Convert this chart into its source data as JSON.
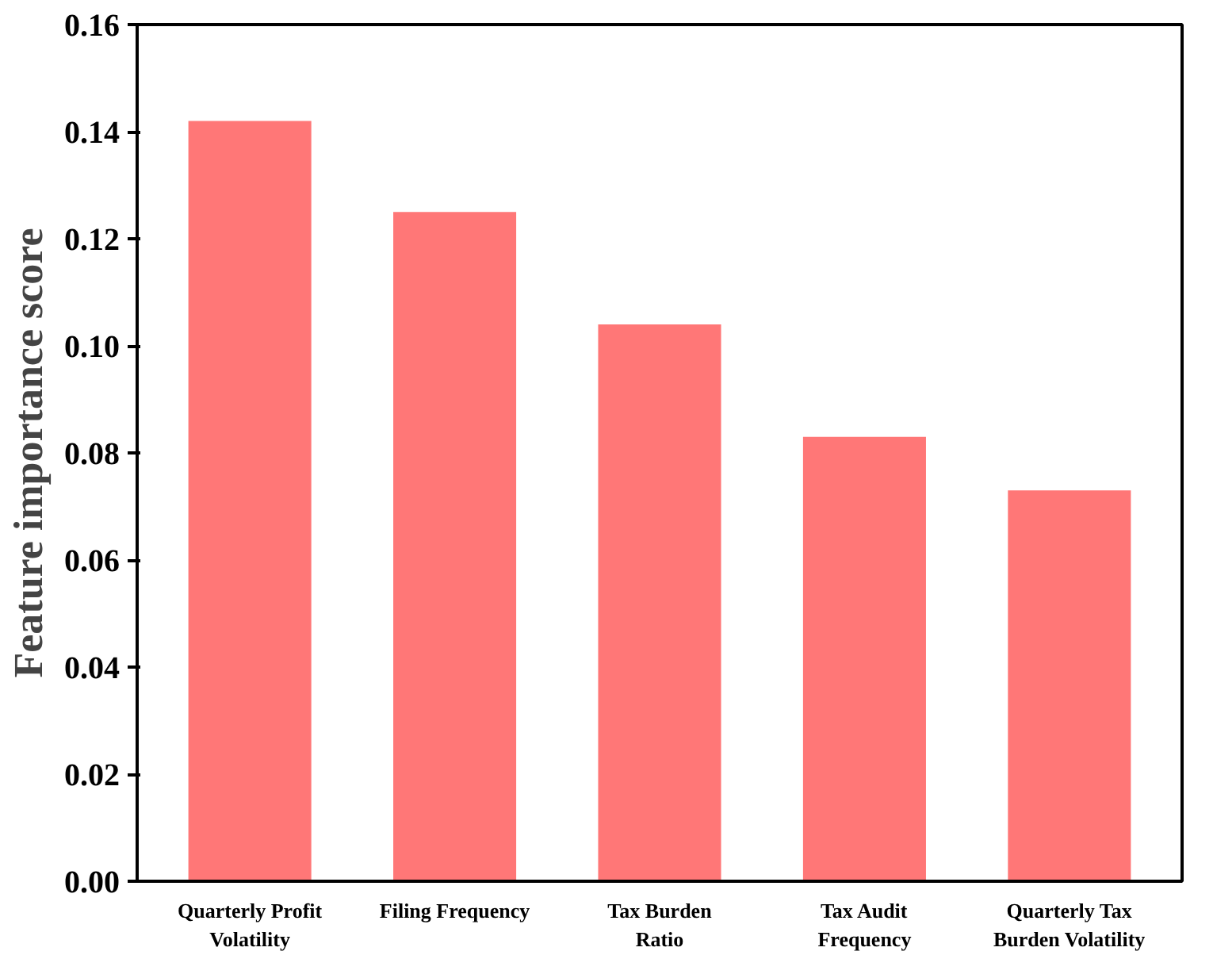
{
  "chart_data": {
    "type": "bar",
    "ylabel": "Feature importance score",
    "categories": [
      "Quarterly Profit\nVolatility",
      "Filing Frequency",
      "Tax Burden\nRatio",
      "Tax Audit\nFrequency",
      "Quarterly Tax\nBurden Volatility"
    ],
    "values": [
      0.142,
      0.125,
      0.104,
      0.083,
      0.073
    ],
    "color": "#ff7777",
    "ylim": [
      0,
      0.16
    ],
    "yticks": [
      {
        "value": 0,
        "label": "0.00"
      },
      {
        "value": 0.02,
        "label": "0.02"
      },
      {
        "value": 0.04,
        "label": "0.04"
      },
      {
        "value": 0.06,
        "label": "0.06"
      },
      {
        "value": 0.08,
        "label": "0.08"
      },
      {
        "value": 0.1,
        "label": "0.10"
      },
      {
        "value": 0.12,
        "label": "0.12"
      },
      {
        "value": 0.14,
        "label": "0.14"
      },
      {
        "value": 0.16,
        "label": "0.16"
      }
    ],
    "grid": false
  }
}
